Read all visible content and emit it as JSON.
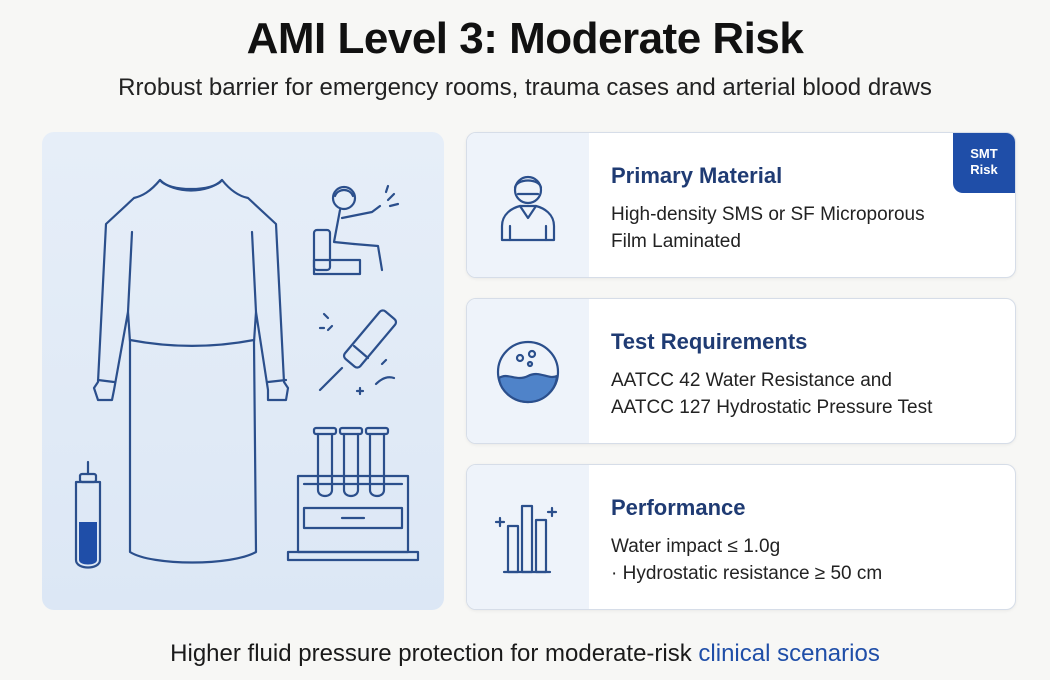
{
  "header": {
    "title": "AMI Level 3: Moderate Risk",
    "subtitle": "Rrobust barrier for emergency rooms, trauma cases and arterial blood draws"
  },
  "cards": [
    {
      "title": "Primary Material",
      "lines": [
        "High-density SMS or SF Microporous",
        "Film Laminated"
      ],
      "badge": [
        "SMT",
        "Risk"
      ],
      "icon": "worker-icon"
    },
    {
      "title": "Test Requirements",
      "lines": [
        "AATCC 42 Water Resistance and",
        "AATCC 127 Hydrostatic Pressure Test"
      ],
      "icon": "water-droplet-icon"
    },
    {
      "title": "Performance",
      "lines": [
        "Water impact ≤ 1.0g",
        "· Hydrostatic resistance ≥ 50 cm"
      ],
      "icon": "bar-chart-icon"
    }
  ],
  "footer": {
    "text": "Higher fluid pressure protection for moderate-risk",
    "highlight": "clinical scenarios"
  },
  "colors": {
    "accent": "#1f4ea8",
    "card_title": "#1f3b73",
    "illustration_bg": "#e6eef8",
    "line": "#2b4f8c"
  }
}
